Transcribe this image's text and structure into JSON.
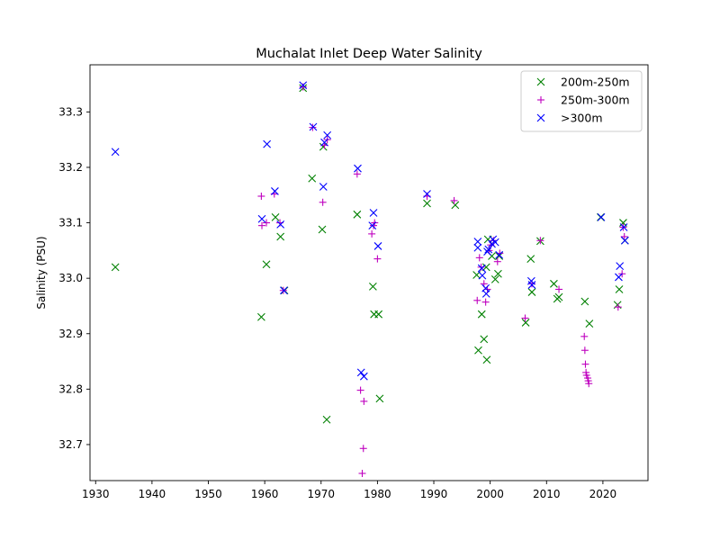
{
  "chart_data": {
    "type": "scatter",
    "title": "Muchalat Inlet Deep Water Salinity",
    "xlabel": "",
    "ylabel": "Salinity (PSU)",
    "xlim": [
      1929,
      2028
    ],
    "ylim": [
      32.635,
      33.385
    ],
    "xticks": [
      1930,
      1940,
      1950,
      1960,
      1970,
      1980,
      1990,
      2000,
      2010,
      2020
    ],
    "yticks": [
      32.7,
      32.8,
      32.9,
      33.0,
      33.1,
      33.2,
      33.3
    ],
    "grid": false,
    "legend_position": "top-right",
    "series": [
      {
        "name": "200m-250m",
        "color": "#008000",
        "marker": "x",
        "points": [
          [
            1933.5,
            33.02
          ],
          [
            1959.4,
            32.93
          ],
          [
            1960.3,
            33.025
          ],
          [
            1961.9,
            33.11
          ],
          [
            1962.8,
            33.075
          ],
          [
            1963.5,
            32.978
          ],
          [
            1966.8,
            33.343
          ],
          [
            1968.4,
            33.18
          ],
          [
            1970.2,
            33.088
          ],
          [
            1970.4,
            33.237
          ],
          [
            1971.0,
            32.745
          ],
          [
            1976.4,
            33.115
          ],
          [
            1979.2,
            32.985
          ],
          [
            1979.4,
            32.935
          ],
          [
            1980.2,
            32.935
          ],
          [
            1980.4,
            32.783
          ],
          [
            1988.8,
            33.135
          ],
          [
            1993.8,
            33.132
          ],
          [
            1997.6,
            33.006
          ],
          [
            1997.9,
            32.87
          ],
          [
            1998.5,
            32.935
          ],
          [
            1998.9,
            32.89
          ],
          [
            1999.3,
            33.02
          ],
          [
            1999.4,
            32.853
          ],
          [
            1999.6,
            33.07
          ],
          [
            2000.3,
            33.04
          ],
          [
            2000.9,
            32.998
          ],
          [
            2001.4,
            33.008
          ],
          [
            2001.6,
            33.04
          ],
          [
            2006.3,
            32.92
          ],
          [
            2007.2,
            33.035
          ],
          [
            2007.4,
            32.975
          ],
          [
            2008.9,
            33.067
          ],
          [
            2011.3,
            32.99
          ],
          [
            2011.9,
            32.963
          ],
          [
            2012.2,
            32.966
          ],
          [
            2016.8,
            32.958
          ],
          [
            2017.6,
            32.918
          ],
          [
            2019.6,
            33.11
          ],
          [
            2022.6,
            32.952
          ],
          [
            2022.9,
            32.98
          ],
          [
            2023.6,
            33.1
          ],
          [
            2023.9,
            33.068
          ]
        ]
      },
      {
        "name": "250m-300m",
        "color": "#bf00bf",
        "marker": "+",
        "points": [
          [
            1959.4,
            33.148
          ],
          [
            1959.5,
            33.095
          ],
          [
            1960.3,
            33.1
          ],
          [
            1961.7,
            33.152
          ],
          [
            1962.7,
            33.1
          ],
          [
            1963.3,
            32.978
          ],
          [
            1966.8,
            33.345
          ],
          [
            1968.5,
            33.272
          ],
          [
            1970.3,
            33.137
          ],
          [
            1970.6,
            33.24
          ],
          [
            1971.1,
            33.25
          ],
          [
            1976.4,
            33.188
          ],
          [
            1977.0,
            32.798
          ],
          [
            1977.3,
            32.648
          ],
          [
            1977.5,
            32.693
          ],
          [
            1977.6,
            32.778
          ],
          [
            1979.0,
            33.08
          ],
          [
            1979.3,
            33.095
          ],
          [
            1979.5,
            33.1
          ],
          [
            1980.0,
            33.035
          ],
          [
            1988.8,
            33.148
          ],
          [
            1993.6,
            33.14
          ],
          [
            1997.7,
            32.96
          ],
          [
            1998.1,
            33.037
          ],
          [
            1998.4,
            33.02
          ],
          [
            1998.9,
            32.99
          ],
          [
            1999.2,
            32.957
          ],
          [
            1999.5,
            32.98
          ],
          [
            1999.8,
            33.05
          ],
          [
            2000.1,
            33.06
          ],
          [
            2000.6,
            33.068
          ],
          [
            2001.3,
            33.03
          ],
          [
            2001.7,
            33.045
          ],
          [
            2006.2,
            32.928
          ],
          [
            2007.4,
            32.99
          ],
          [
            2008.9,
            33.068
          ],
          [
            2012.2,
            32.98
          ],
          [
            2016.7,
            32.895
          ],
          [
            2016.8,
            32.87
          ],
          [
            2016.9,
            32.845
          ],
          [
            2017.0,
            32.83
          ],
          [
            2017.1,
            32.825
          ],
          [
            2017.3,
            32.82
          ],
          [
            2017.4,
            32.815
          ],
          [
            2017.5,
            32.81
          ],
          [
            2022.7,
            32.948
          ],
          [
            2023.4,
            33.008
          ],
          [
            2023.6,
            33.092
          ],
          [
            2023.8,
            33.075
          ]
        ]
      },
      {
        "name": ">300m",
        "color": "#0000ff",
        "marker": "x",
        "points": [
          [
            1933.5,
            33.228
          ],
          [
            1959.5,
            33.107
          ],
          [
            1960.4,
            33.242
          ],
          [
            1961.8,
            33.157
          ],
          [
            1962.8,
            33.097
          ],
          [
            1963.4,
            32.978
          ],
          [
            1966.8,
            33.348
          ],
          [
            1968.6,
            33.273
          ],
          [
            1970.4,
            33.165
          ],
          [
            1970.6,
            33.245
          ],
          [
            1971.1,
            33.258
          ],
          [
            1976.5,
            33.198
          ],
          [
            1977.1,
            32.83
          ],
          [
            1977.6,
            32.823
          ],
          [
            1979.1,
            33.095
          ],
          [
            1979.3,
            33.118
          ],
          [
            1980.1,
            33.058
          ],
          [
            1988.8,
            33.152
          ],
          [
            1997.8,
            33.055
          ],
          [
            1997.8,
            33.066
          ],
          [
            1998.5,
            33.018
          ],
          [
            1998.6,
            33.005
          ],
          [
            1999.2,
            32.982
          ],
          [
            1999.3,
            32.972
          ],
          [
            1999.5,
            33.048
          ],
          [
            1999.7,
            33.052
          ],
          [
            2000.3,
            33.062
          ],
          [
            2000.5,
            33.07
          ],
          [
            2000.9,
            33.065
          ],
          [
            2001.6,
            33.042
          ],
          [
            2007.3,
            32.995
          ],
          [
            2007.4,
            32.988
          ],
          [
            2019.7,
            33.11
          ],
          [
            2022.8,
            33.002
          ],
          [
            2023.0,
            33.022
          ],
          [
            2023.7,
            33.092
          ],
          [
            2023.9,
            33.068
          ]
        ]
      }
    ]
  }
}
